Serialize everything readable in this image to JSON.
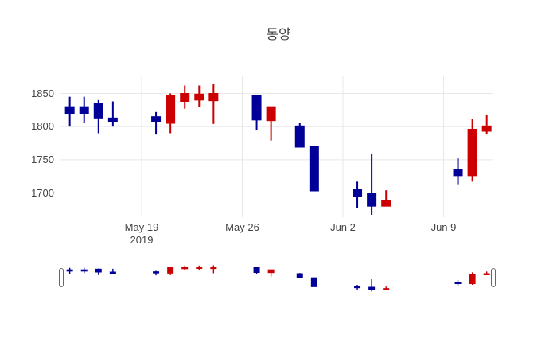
{
  "title": "동양",
  "colors": {
    "increasing": "#cc0000",
    "decreasing": "#000099",
    "gridline": "#e8e8e8",
    "tick_text": "#444444",
    "title_text": "#444444",
    "background": "#ffffff",
    "slider_handle_border": "#666666"
  },
  "y_axis": {
    "tick_labels": [
      "1850",
      "1800",
      "1750",
      "1700"
    ],
    "tick_values": [
      1850,
      1800,
      1750,
      1700
    ],
    "range": [
      1663,
      1877
    ]
  },
  "x_axis": {
    "ticks": [
      {
        "label": "May 19",
        "year_label": "2019",
        "date": "2019-05-19"
      },
      {
        "label": "May 26",
        "year_label": "",
        "date": "2019-05-26"
      },
      {
        "label": "Jun 2",
        "year_label": "",
        "date": "2019-06-02"
      },
      {
        "label": "Jun 9",
        "year_label": "",
        "date": "2019-06-09"
      }
    ]
  },
  "rangeslider": {
    "visible": true,
    "left_handle": "range-start",
    "right_handle": "range-end"
  },
  "chart_data": {
    "type": "candlestick",
    "title": "동양",
    "x": [
      "2019-05-14",
      "2019-05-15",
      "2019-05-16",
      "2019-05-17",
      "2019-05-20",
      "2019-05-21",
      "2019-05-22",
      "2019-05-23",
      "2019-05-24",
      "2019-05-27",
      "2019-05-28",
      "2019-05-30",
      "2019-05-31",
      "2019-06-03",
      "2019-06-04",
      "2019-06-05",
      "2019-06-10",
      "2019-06-11",
      "2019-06-12"
    ],
    "open": [
      1830,
      1830,
      1835,
      1813,
      1815,
      1805,
      1838,
      1840,
      1839,
      1847,
      1809,
      1801,
      1770,
      1705,
      1699,
      1680,
      1735,
      1726,
      1793
    ],
    "high": [
      1845,
      1845,
      1840,
      1838,
      1822,
      1850,
      1862,
      1862,
      1864,
      1847,
      1830,
      1806,
      1770,
      1717,
      1759,
      1704,
      1752,
      1811,
      1817
    ],
    "low": [
      1800,
      1805,
      1790,
      1800,
      1788,
      1790,
      1827,
      1829,
      1804,
      1795,
      1779,
      1769,
      1703,
      1677,
      1667,
      1680,
      1713,
      1717,
      1789
    ],
    "close": [
      1820,
      1820,
      1813,
      1808,
      1808,
      1847,
      1850,
      1849,
      1850,
      1810,
      1830,
      1769,
      1703,
      1695,
      1680,
      1689,
      1726,
      1796,
      1801
    ],
    "increasing_color": "#cc0000",
    "decreasing_color": "#000099",
    "ylim": [
      1663,
      1877
    ],
    "x_range": [
      "2019-05-13",
      "2019-06-13"
    ],
    "grid": true,
    "legend": "none",
    "rangeslider": true
  }
}
